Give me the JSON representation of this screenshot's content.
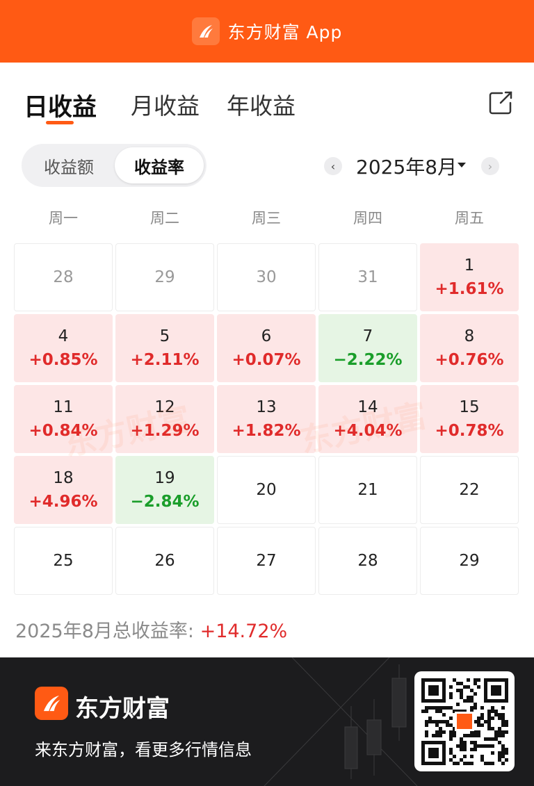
{
  "header": {
    "title": "东方财富 App"
  },
  "tabs": [
    {
      "label": "日收益",
      "active": true
    },
    {
      "label": "月收益",
      "active": false
    },
    {
      "label": "年收益",
      "active": false
    }
  ],
  "segment": [
    {
      "label": "收益额",
      "active": false
    },
    {
      "label": "收益率",
      "active": true
    }
  ],
  "month": {
    "label": "2025年8月",
    "prev_icon": "chevron-left-icon",
    "next_icon": "chevron-right-icon"
  },
  "weekdays": [
    "周一",
    "周二",
    "周三",
    "周四",
    "周五"
  ],
  "calendar": [
    {
      "day": "28",
      "value": "",
      "state": "prev"
    },
    {
      "day": "29",
      "value": "",
      "state": "prev"
    },
    {
      "day": "30",
      "value": "",
      "state": "prev"
    },
    {
      "day": "31",
      "value": "",
      "state": "prev"
    },
    {
      "day": "1",
      "value": "+1.61%",
      "state": "up"
    },
    {
      "day": "4",
      "value": "+0.85%",
      "state": "up"
    },
    {
      "day": "5",
      "value": "+2.11%",
      "state": "up"
    },
    {
      "day": "6",
      "value": "+0.07%",
      "state": "up"
    },
    {
      "day": "7",
      "value": "−2.22%",
      "state": "down"
    },
    {
      "day": "8",
      "value": "+0.76%",
      "state": "up"
    },
    {
      "day": "11",
      "value": "+0.84%",
      "state": "up"
    },
    {
      "day": "12",
      "value": "+1.29%",
      "state": "up"
    },
    {
      "day": "13",
      "value": "+1.82%",
      "state": "up"
    },
    {
      "day": "14",
      "value": "+4.04%",
      "state": "up"
    },
    {
      "day": "15",
      "value": "+0.78%",
      "state": "up"
    },
    {
      "day": "18",
      "value": "+4.96%",
      "state": "up"
    },
    {
      "day": "19",
      "value": "−2.84%",
      "state": "down"
    },
    {
      "day": "20",
      "value": "",
      "state": "none"
    },
    {
      "day": "21",
      "value": "",
      "state": "none"
    },
    {
      "day": "22",
      "value": "",
      "state": "none"
    },
    {
      "day": "25",
      "value": "",
      "state": "none"
    },
    {
      "day": "26",
      "value": "",
      "state": "none"
    },
    {
      "day": "27",
      "value": "",
      "state": "none"
    },
    {
      "day": "28",
      "value": "",
      "state": "none"
    },
    {
      "day": "29",
      "value": "",
      "state": "none"
    }
  ],
  "watermark": "东方财富",
  "summary": {
    "label": "2025年8月总收益率: ",
    "value": "+14.72%"
  },
  "footer": {
    "brand": "东方财富",
    "slogan": "来东方财富，看更多行情信息"
  },
  "colors": {
    "accent": "#ff5a14",
    "up": "#e02b2b",
    "down": "#1a9e2a",
    "up_bg": "#fde6e6",
    "down_bg": "#e6f5e4"
  }
}
